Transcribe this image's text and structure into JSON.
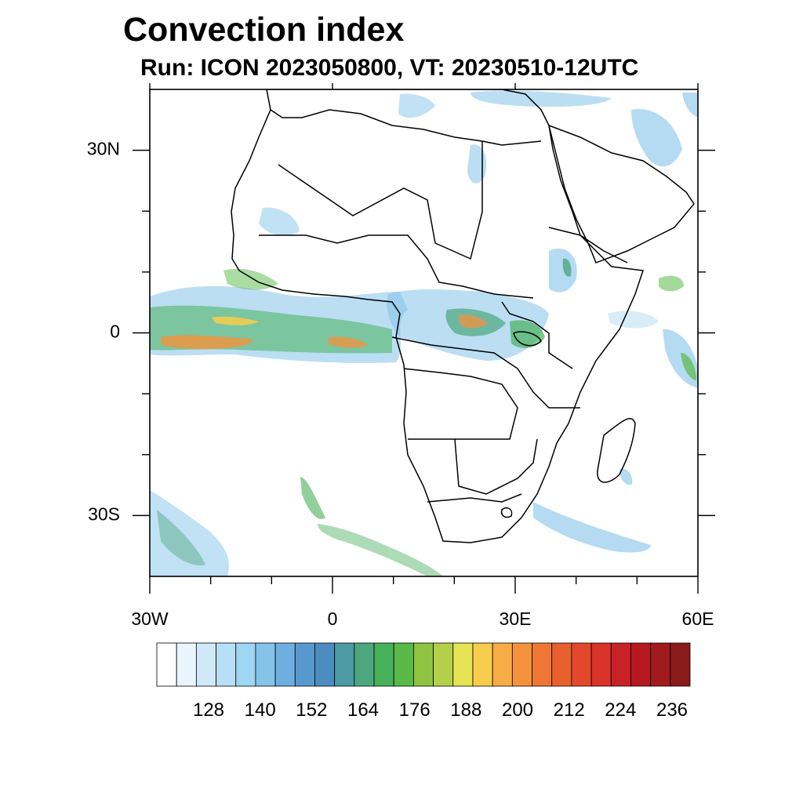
{
  "title": "Convection index",
  "subtitle": "Run: ICON 2023050800,  VT: 20230510-12UTC",
  "map": {
    "region": "Africa and adjacent Atlantic / Indian Ocean",
    "lon_range": [
      -30,
      60
    ],
    "lat_range": [
      -40,
      40
    ],
    "lat_ticks": [
      {
        "value": 30,
        "label": "30N"
      },
      {
        "value": 0,
        "label": "0"
      },
      {
        "value": -30,
        "label": "30S"
      }
    ],
    "lon_ticks": [
      {
        "value": -30,
        "label": "30W"
      },
      {
        "value": 0,
        "label": "0"
      },
      {
        "value": 30,
        "label": "30E"
      },
      {
        "value": 60,
        "label": "60E"
      }
    ],
    "lon_minor": [
      -20,
      -10,
      10,
      20,
      40,
      50
    ],
    "lat_minor": [
      20,
      10,
      -10,
      -20
    ]
  },
  "colorbar": {
    "colors": [
      "#ffffff",
      "#e9f5fd",
      "#cfe9f8",
      "#b7e0f7",
      "#9ed6f3",
      "#84c3ea",
      "#6eaee0",
      "#5799cf",
      "#4b8dbf",
      "#4b9aa4",
      "#4ca77e",
      "#47b05a",
      "#58b947",
      "#8fc442",
      "#b4d04a",
      "#e6e354",
      "#f7cd4d",
      "#f7ad45",
      "#f4923c",
      "#ef7733",
      "#e8602d",
      "#e2482b",
      "#d9332a",
      "#c82128",
      "#b5181f",
      "#a11a1e",
      "#8b1a1a"
    ],
    "tick_labels": [
      "128",
      "140",
      "152",
      "164",
      "176",
      "188",
      "200",
      "212",
      "224",
      "236"
    ]
  }
}
